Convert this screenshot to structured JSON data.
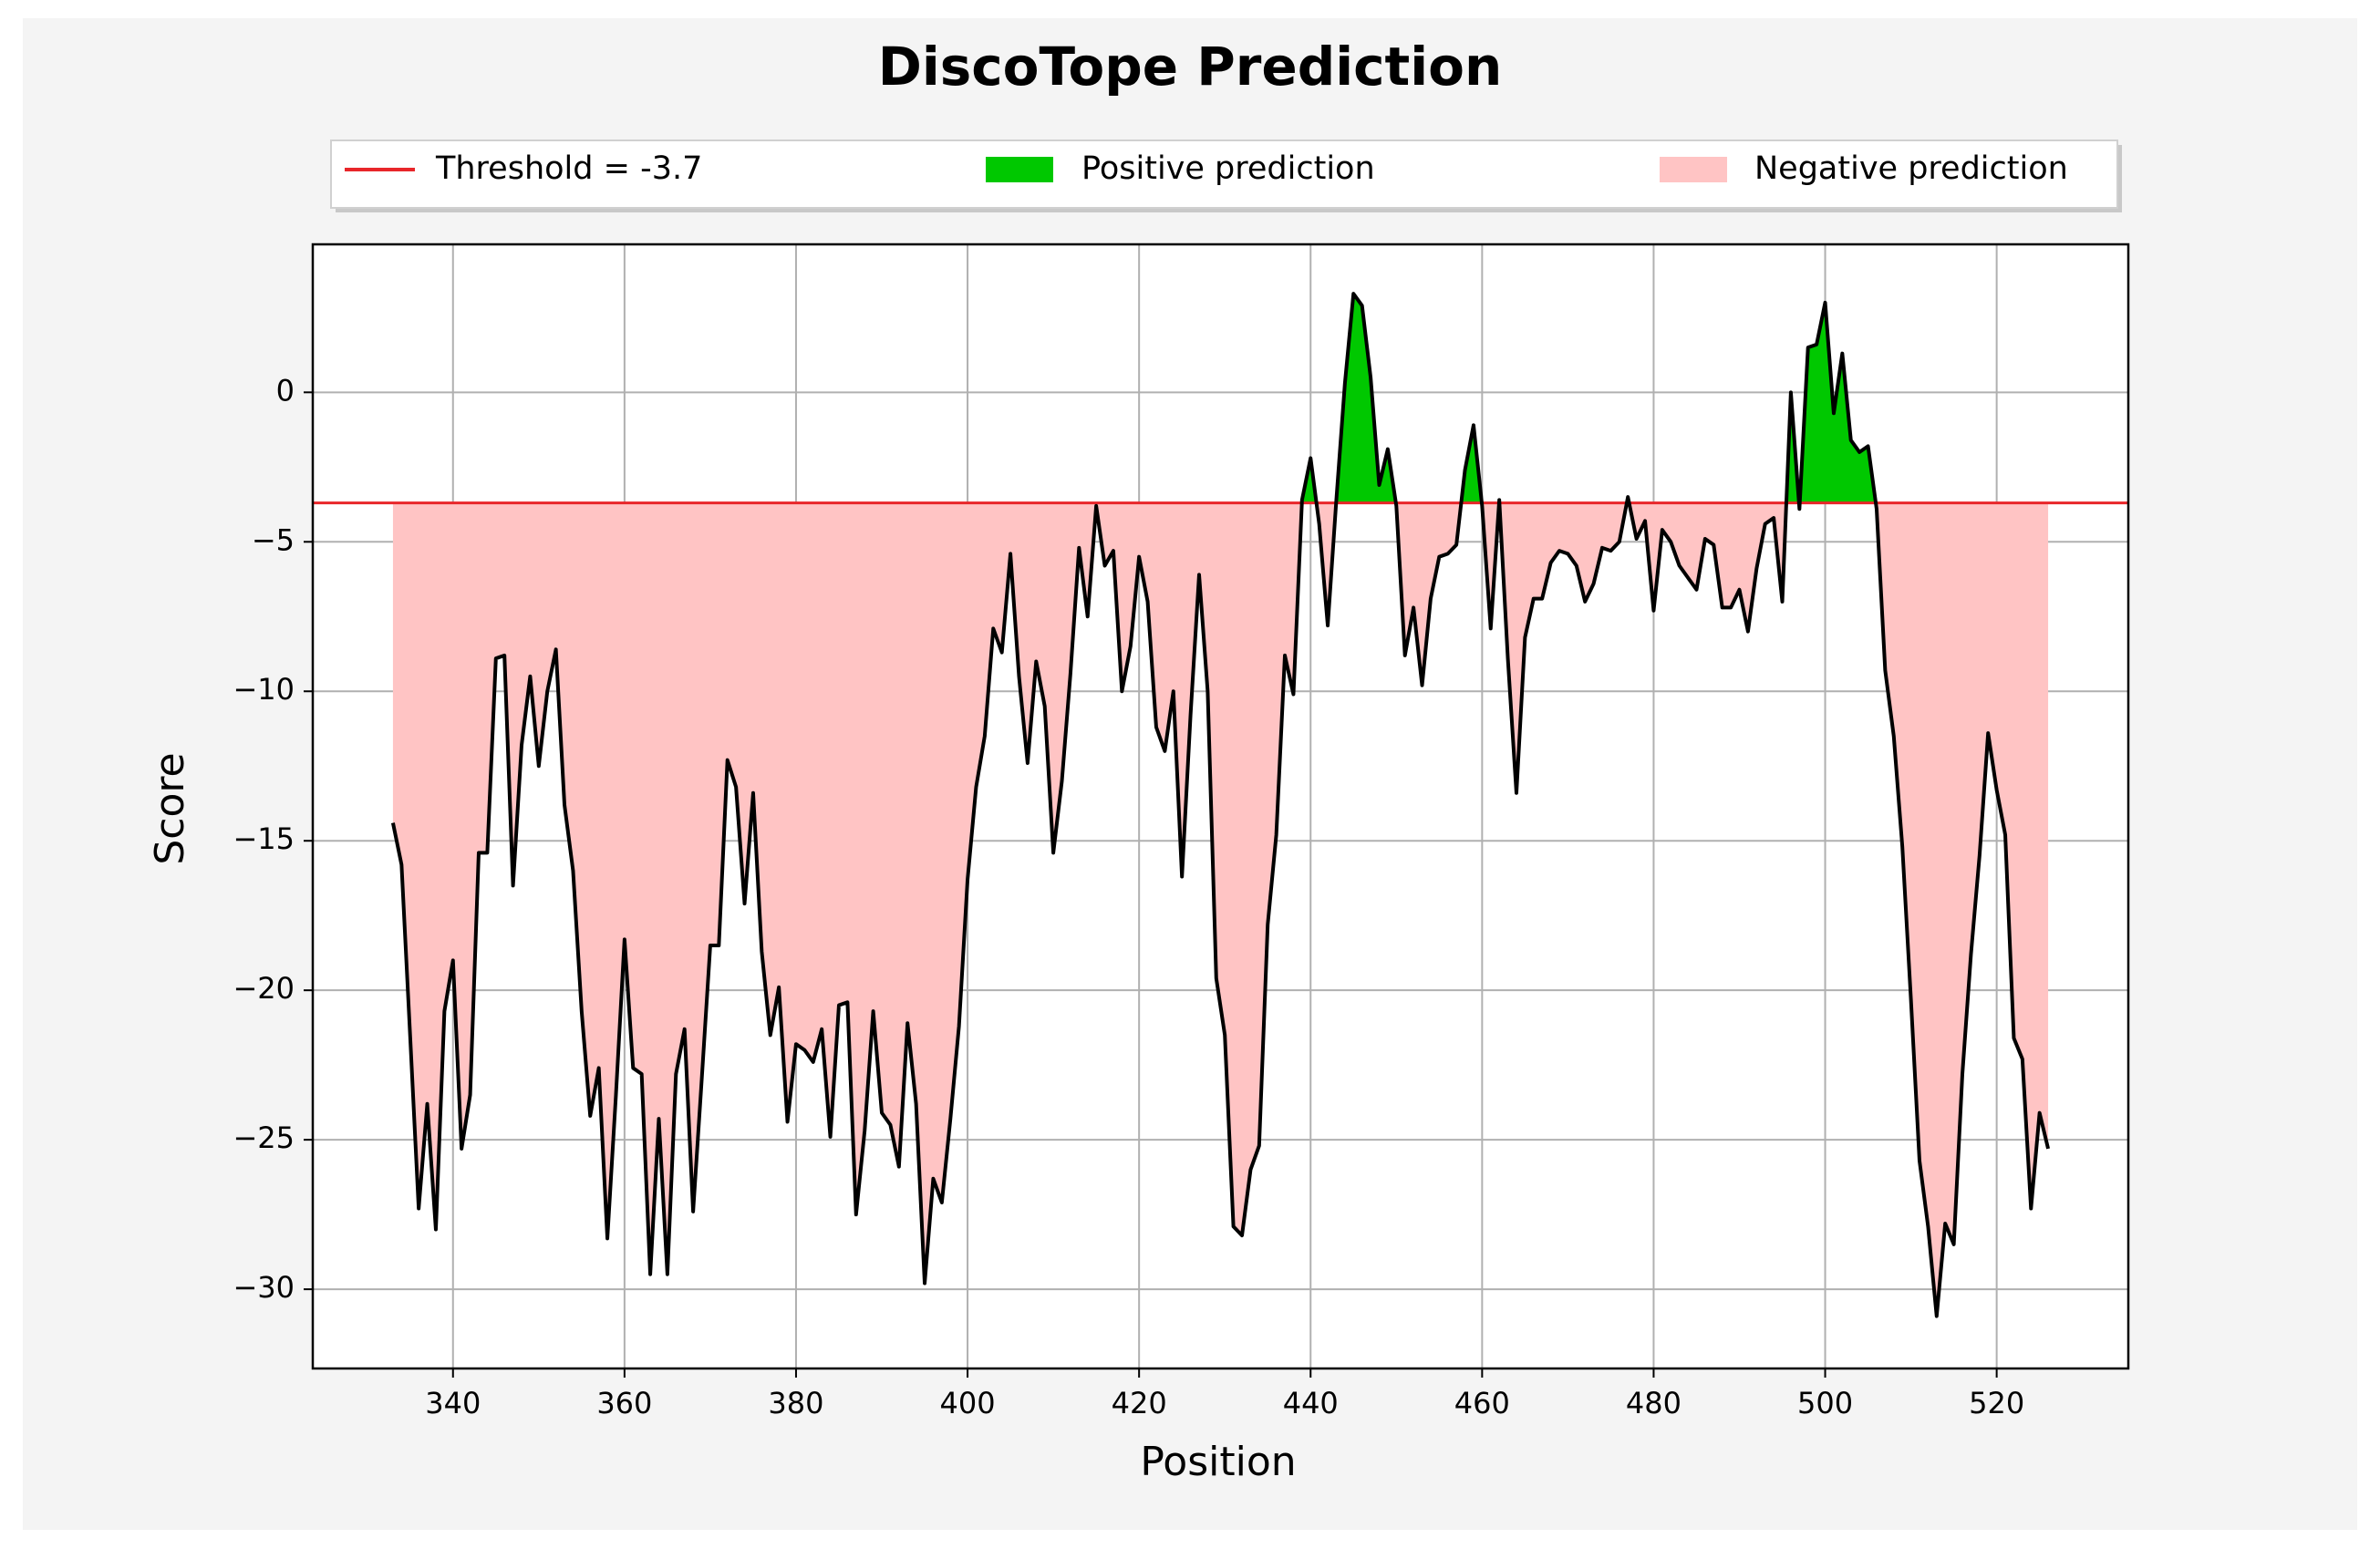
{
  "chart_data": {
    "type": "line",
    "title": "DiscoTope Prediction",
    "x_label": "Position",
    "y_label": "Score",
    "threshold": -3.7,
    "legend": [
      "Threshold = -3.7",
      "Positive prediction",
      "Negative prediction"
    ],
    "threshold_color": "#e8262a",
    "positive_color": "#00c800",
    "negative_color": "#ffc4c4",
    "grid": true,
    "x": [
      333,
      334,
      335,
      336,
      337,
      338,
      339,
      340,
      341,
      342,
      343,
      344,
      345,
      346,
      347,
      348,
      349,
      350,
      351,
      352,
      353,
      354,
      355,
      356,
      357,
      358,
      359,
      360,
      361,
      362,
      363,
      364,
      365,
      366,
      367,
      368,
      369,
      370,
      371,
      372,
      373,
      374,
      375,
      376,
      377,
      378,
      379,
      380,
      381,
      382,
      383,
      384,
      385,
      386,
      387,
      388,
      389,
      390,
      391,
      392,
      393,
      394,
      395,
      396,
      397,
      398,
      399,
      400,
      401,
      402,
      403,
      404,
      405,
      406,
      407,
      408,
      409,
      410,
      411,
      412,
      413,
      414,
      415,
      416,
      417,
      418,
      419,
      420,
      421,
      422,
      423,
      424,
      425,
      426,
      427,
      428,
      429,
      430,
      431,
      432,
      433,
      434,
      435,
      436,
      437,
      438,
      439,
      440,
      441,
      442,
      443,
      444,
      445,
      446,
      447,
      448,
      449,
      450,
      451,
      452,
      453,
      454,
      455,
      456,
      457,
      458,
      459,
      460,
      461,
      462,
      463,
      464,
      465,
      466,
      467,
      468,
      469,
      470,
      471,
      472,
      473,
      474,
      475,
      476,
      477,
      478,
      479,
      480,
      481,
      482,
      483,
      484,
      485,
      486,
      487,
      488,
      489,
      490,
      491,
      492,
      493,
      494,
      495,
      496,
      497,
      498,
      499,
      500,
      501,
      502,
      503,
      504,
      505,
      506,
      507,
      508,
      509,
      510,
      511,
      512,
      513,
      514,
      515,
      516,
      517,
      518,
      519,
      520,
      521,
      522,
      523,
      524,
      525,
      526
    ],
    "series": [
      {
        "name": "Score",
        "color": "#000000",
        "values": [
          -14.4,
          -15.8,
          -21.5,
          -27.3,
          -23.8,
          -28.0,
          -20.7,
          -19.0,
          -25.3,
          -23.5,
          -15.4,
          -15.4,
          -8.9,
          -8.8,
          -16.5,
          -11.8,
          -9.5,
          -12.5,
          -10.0,
          -8.6,
          -13.8,
          -16.0,
          -20.7,
          -24.2,
          -22.6,
          -28.3,
          -23.5,
          -18.3,
          -22.6,
          -22.8,
          -29.5,
          -24.3,
          -29.5,
          -22.8,
          -21.3,
          -27.4,
          -23.0,
          -18.5,
          -18.5,
          -12.3,
          -13.2,
          -17.1,
          -13.4,
          -18.7,
          -21.5,
          -19.9,
          -24.4,
          -21.8,
          -22.0,
          -22.4,
          -21.3,
          -24.9,
          -20.5,
          -20.4,
          -27.5,
          -24.7,
          -20.7,
          -24.1,
          -24.5,
          -25.9,
          -21.1,
          -23.8,
          -29.8,
          -26.3,
          -27.1,
          -24.3,
          -21.2,
          -16.3,
          -13.2,
          -11.5,
          -7.9,
          -8.7,
          -5.4,
          -9.5,
          -12.4,
          -9.0,
          -10.5,
          -15.4,
          -13.0,
          -9.4,
          -5.2,
          -7.5,
          -3.8,
          -5.8,
          -5.3,
          -10.0,
          -8.5,
          -5.5,
          -7.0,
          -11.2,
          -12.0,
          -10.0,
          -16.2,
          -10.8,
          -6.1,
          -10.0,
          -19.6,
          -21.5,
          -27.9,
          -28.2,
          -26.0,
          -25.2,
          -17.8,
          -14.8,
          -8.8,
          -10.1,
          -3.6,
          -2.2,
          -4.4,
          -7.8,
          -3.6,
          0.3,
          3.3,
          2.9,
          0.5,
          -3.1,
          -1.9,
          -3.8,
          -8.8,
          -7.2,
          -9.8,
          -6.9,
          -5.5,
          -5.4,
          -5.1,
          -2.6,
          -1.1,
          -3.8,
          -7.9,
          -3.6,
          -8.9,
          -13.4,
          -8.2,
          -6.9,
          -6.9,
          -5.7,
          -5.3,
          -5.4,
          -5.8,
          -7.0,
          -6.4,
          -5.2,
          -5.3,
          -5.0,
          -3.5,
          -4.9,
          -4.3,
          -7.3,
          -4.6,
          -5.0,
          -5.8,
          -6.2,
          -6.6,
          -4.9,
          -5.1,
          -7.2,
          -7.2,
          -6.6,
          -8.0,
          -5.9,
          -4.4,
          -4.2,
          -7.0,
          0.0,
          -3.9,
          1.5,
          1.6,
          3.0,
          -0.7,
          1.3,
          -1.6,
          -2.0,
          -1.8,
          -3.9,
          -9.3,
          -11.5,
          -15.2,
          -20.3,
          -25.7,
          -27.9,
          -30.9,
          -27.8,
          -28.5,
          -22.8,
          -18.8,
          -15.5,
          -11.4,
          -13.3,
          -14.8,
          -21.6,
          -22.3,
          -27.3,
          -24.1,
          -25.3
        ]
      }
    ],
    "xlim": [
      323.65,
      535.35
    ],
    "ylim": [
      -32.65,
      4.95
    ],
    "xticks": [
      340,
      360,
      380,
      400,
      420,
      440,
      460,
      480,
      500,
      520
    ],
    "yticks": [
      {
        "value": -30,
        "label": "−30"
      },
      {
        "value": -25,
        "label": "−25"
      },
      {
        "value": -20,
        "label": "−20"
      },
      {
        "value": -15,
        "label": "−15"
      },
      {
        "value": -10,
        "label": "−10"
      },
      {
        "value": -5,
        "label": "−5"
      },
      0
    ]
  }
}
